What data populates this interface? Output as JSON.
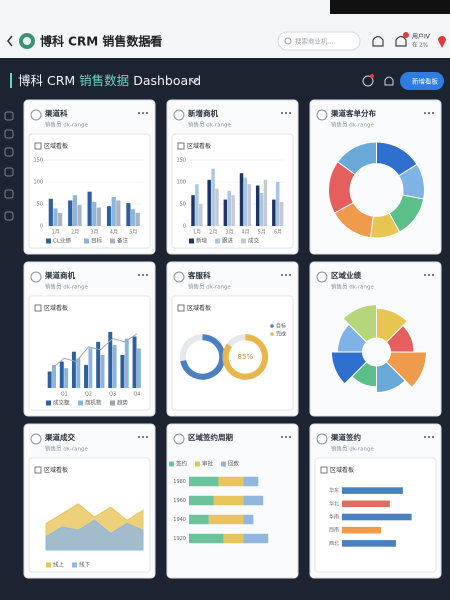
{
  "header": {
    "title": "博科 CRM 销售数据看",
    "search": "搜索商业机...",
    "user": "用户IV",
    "user_status": "在 2%"
  },
  "toolbar": {
    "title": "博科 CRM",
    "highlight": "销售数据",
    "title_end": "Dashboard",
    "button": "新增看板"
  },
  "cards": [
    {
      "title": "渠道科",
      "subtitle": "销售员 dk-range",
      "panel_title": "区域看板",
      "chart": {
        "type": "bar",
        "categories": [
          "1月",
          "2月",
          "3月",
          "4月",
          "5月"
        ],
        "ylim": [
          0,
          150
        ],
        "yticks": [
          0,
          50,
          100,
          150
        ],
        "series": [
          {
            "name": "CL业绩",
            "color": "#2f5f9e",
            "values": [
              62,
              58,
              78,
              45,
              52
            ]
          },
          {
            "name": "目标",
            "color": "#8db4dc",
            "values": [
              40,
              70,
              55,
              66,
              38
            ]
          },
          {
            "name": "备注",
            "color": "#aab3bf",
            "values": [
              30,
              48,
              42,
              58,
              30
            ]
          }
        ]
      }
    },
    {
      "title": "新增商机",
      "subtitle": "销售员 dk-range",
      "panel_title": "区域看板",
      "chart": {
        "type": "bar",
        "categories": [
          "1月",
          "2月",
          "3月",
          "4月",
          "5月",
          "6月"
        ],
        "ylim": [
          0,
          150
        ],
        "yticks": [
          0,
          50,
          100,
          150
        ],
        "series": [
          {
            "name": "新增",
            "color": "#1d3566",
            "values": [
              70,
              105,
              60,
              120,
              92,
              60
            ]
          },
          {
            "name": "跟进",
            "color": "#a9c6e4",
            "values": [
              95,
              130,
              80,
              110,
              75,
              100
            ]
          },
          {
            "name": "成交",
            "color": "#c3cad3",
            "values": [
              50,
              85,
              70,
              95,
              105,
              55
            ]
          }
        ]
      }
    },
    {
      "title": "渠道客单分布",
      "subtitle": "销售员 dk-range",
      "chart": {
        "type": "donut",
        "values": [
          16,
          12,
          14,
          10,
          15,
          18,
          15
        ],
        "colors": [
          "#2f6fcf",
          "#7fb2e5",
          "#5cbf8a",
          "#e8c451",
          "#ef9a4c",
          "#e65f5f",
          "#6aa8d8"
        ]
      }
    },
    {
      "title": "渠道商机",
      "subtitle": "销售员 dk-range",
      "panel_title": "区域看板",
      "chart": {
        "type": "bar",
        "categories": [
          null,
          "Q1",
          null,
          "Q2",
          null,
          "Q3",
          null,
          "Q4"
        ],
        "ylim": [
          0,
          100
        ],
        "series": [
          {
            "name": "成交额",
            "color": "#2f5f9e",
            "values": [
              25,
              40,
              55,
              35,
              70,
              85,
              50,
              78
            ]
          },
          {
            "name": "商机数",
            "color": "#8db4dc",
            "values": [
              35,
              30,
              45,
              60,
              50,
              65,
              75,
              60
            ]
          },
          {
            "name": "趋势",
            "color": "#9aa5b4",
            "kind": "line",
            "values": [
              30,
              45,
              40,
              62,
              58,
              75,
              70,
              82
            ]
          }
        ]
      }
    },
    {
      "title": "客服科",
      "subtitle": "销售员 dk-range",
      "panel_title": "区域看板",
      "chart": {
        "type": "rings",
        "values": [
          72,
          85
        ],
        "value_labels": [
          null,
          "85%"
        ],
        "labels": [
          "目标",
          "完成"
        ],
        "colors": [
          "#4a7fc1",
          "#e8b64a"
        ]
      }
    },
    {
      "title": "区域业绩",
      "subtitle": "销售员 dk-range",
      "chart": {
        "type": "rose",
        "values": [
          78,
          62,
          95,
          70,
          55,
          82,
          66,
          88
        ],
        "colors": [
          "#e8c451",
          "#e65f5f",
          "#ef9a4c",
          "#6aa8d8",
          "#5cbf8a",
          "#2f6fcf",
          "#7fb2e5",
          "#b5d67a"
        ]
      }
    },
    {
      "title": "渠道成交",
      "subtitle": "销售员 dk-range",
      "panel_title": "区域看板",
      "chart": {
        "type": "stream",
        "ylim": [
          0,
          100
        ],
        "series": [
          {
            "name": "线上",
            "color": "#e8c45a",
            "values": [
              40,
              55,
              70,
              50,
              65,
              45,
              60
            ]
          },
          {
            "name": "线下",
            "color": "#8fb7e0",
            "values": [
              20,
              35,
              30,
              45,
              25,
              40,
              30
            ]
          }
        ]
      }
    },
    {
      "title": "区域签约周期",
      "chart": {
        "type": "hbar",
        "categories": [
          "1980",
          "1960",
          "1940",
          "1920"
        ],
        "xlim": [
          0,
          100
        ],
        "series": [
          {
            "name": "签约",
            "color": "#6cc39b",
            "values": [
              30,
              25,
              20,
              35
            ]
          },
          {
            "name": "审批",
            "color": "#e8c45a",
            "values": [
              25,
              30,
              35,
              20
            ]
          },
          {
            "name": "回款",
            "color": "#8fb7e0",
            "values": [
              15,
              20,
              10,
              25
            ]
          }
        ]
      }
    },
    {
      "title": "渠道签约",
      "subtitle": "销售员 dk-range",
      "panel_title": "区域看板",
      "chart": {
        "type": "hbar",
        "categories": [
          "华东",
          "华北",
          "华南",
          "西南",
          "西北"
        ],
        "xlim": [
          0,
          100
        ],
        "values": [
          70,
          55,
          80,
          45,
          62
        ],
        "colors": [
          "#4a7fc1",
          "#e0705e",
          "#4a7fc1",
          "#ef9a4c",
          "#4a7fc1"
        ]
      }
    }
  ]
}
